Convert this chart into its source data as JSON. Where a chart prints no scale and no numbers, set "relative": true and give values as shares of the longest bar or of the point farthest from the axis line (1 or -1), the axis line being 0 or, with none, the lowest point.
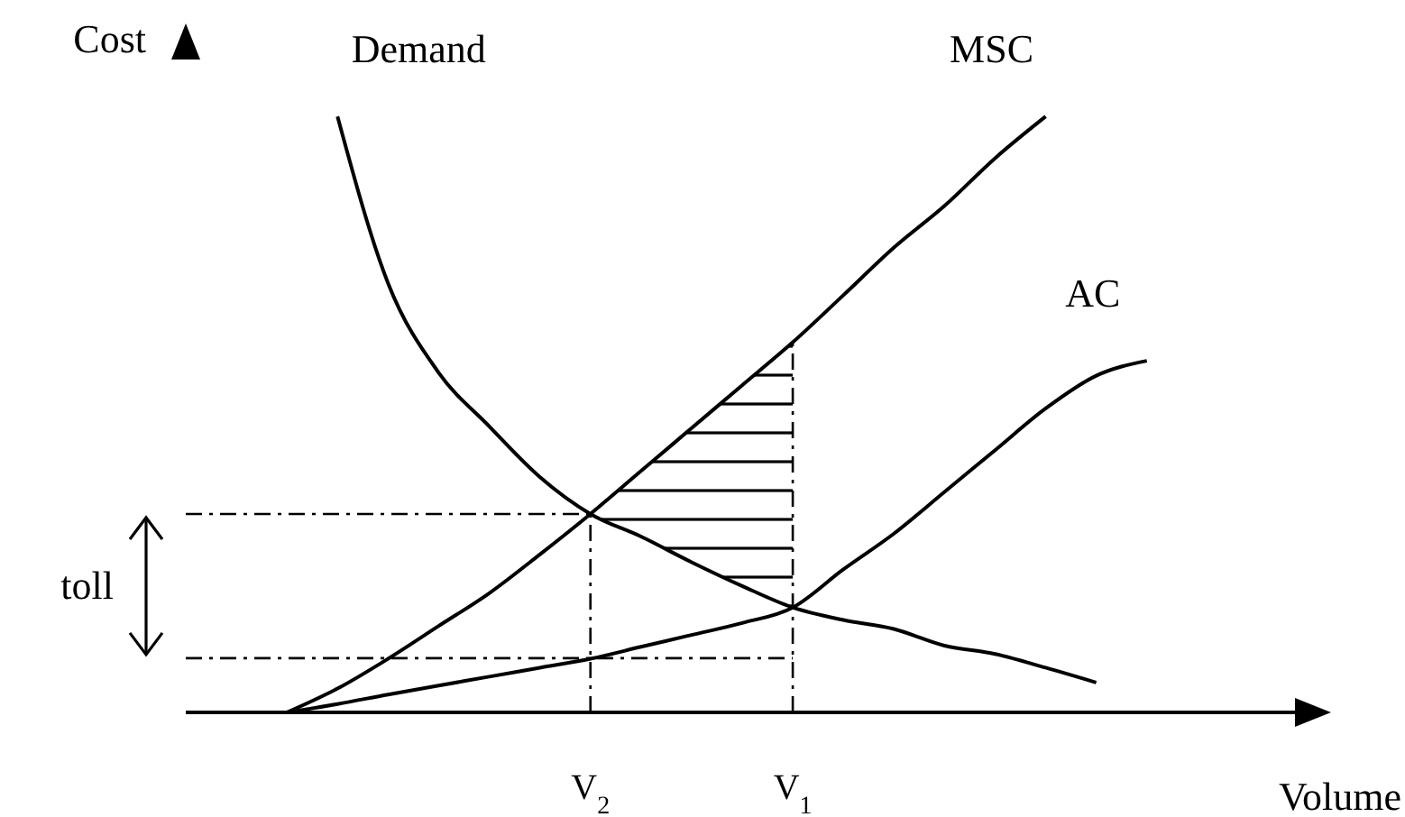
{
  "chart_data": {
    "type": "line",
    "relative": true,
    "xlabel": "Volume",
    "ylabel": "Cost",
    "categories": [
      null,
      null,
      null,
      null,
      null,
      null,
      null,
      null,
      "V$_{2}$",
      null,
      null,
      null,
      "V$_{1}$",
      null,
      null,
      null,
      null,
      null,
      null,
      null,
      null,
      null,
      null
    ],
    "series": [
      {
        "name": "Demand",
        "color": "#000000",
        "values": [
          null,
          null,
          null,
          1,
          0.72,
          0.57,
          0.48,
          0.395,
          0.333,
          0.295,
          0.252,
          0.212,
          0.176,
          0.155,
          0.14,
          0.112,
          0.098,
          0.075,
          0.05,
          null,
          null,
          null,
          null
        ]
      },
      {
        "name": "MSC",
        "color": "#000000",
        "values": [
          null,
          null,
          0,
          0.04,
          0.09,
          0.145,
          0.2,
          0.265,
          0.333,
          0.405,
          0.477,
          0.549,
          0.621,
          0.7,
          0.78,
          0.85,
          0.93,
          1,
          null,
          null,
          null,
          null,
          null
        ],
        "lower": [
          null,
          null,
          null,
          null,
          null,
          null,
          null,
          null,
          0.333,
          0.295,
          0.252,
          0.212,
          0.176,
          null,
          null,
          null,
          null,
          null,
          null,
          null,
          null,
          null,
          null
        ],
        "upper": [
          null,
          null,
          null,
          null,
          null,
          null,
          null,
          null,
          0.333,
          0.405,
          0.477,
          0.549,
          0.621,
          null,
          null,
          null,
          null,
          null,
          null,
          null,
          null,
          null,
          null
        ]
      },
      {
        "name": "AC",
        "color": "#000000",
        "values": [
          null,
          null,
          0,
          0.014,
          0.03,
          0.045,
          0.06,
          0.075,
          0.09,
          0.11,
          0.13,
          0.15,
          0.176,
          0.24,
          0.3,
          0.37,
          0.44,
          0.51,
          0.565,
          0.59,
          null,
          null,
          null
        ]
      }
    ],
    "ref_lines": [
      {
        "axis": "y",
        "value": 0.333,
        "line_style": "dashed"
      },
      {
        "axis": "y",
        "value": 0.091,
        "line_style": "dashed"
      },
      {
        "axis": "x",
        "value": "V$_{2}$",
        "line_style": "dashed"
      },
      {
        "axis": "x",
        "value": "V$_{1}$",
        "line_style": "dashed"
      }
    ],
    "annotations": [
      "toll"
    ],
    "marker": "none",
    "line_style": "solid"
  }
}
